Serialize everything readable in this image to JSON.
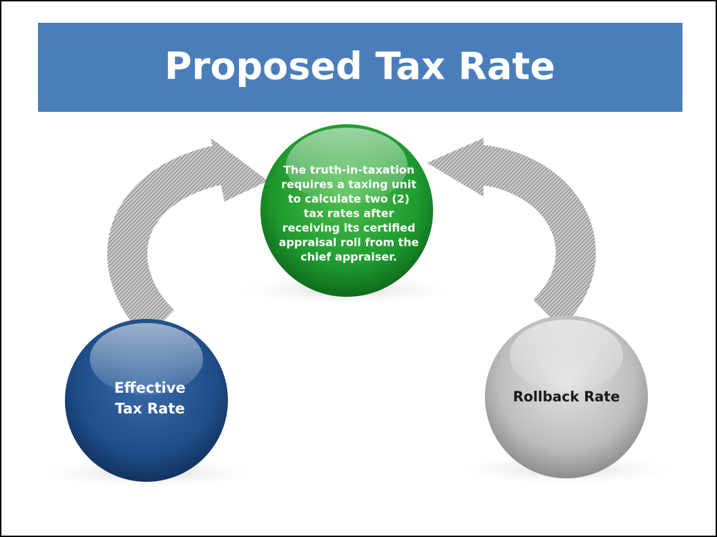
{
  "title": "Proposed Tax Rate",
  "nodes": [
    {
      "lines": [
        "The truth-in-taxation",
        "requires a taxing unit",
        "to calculate two (2)",
        "tax rates after",
        "receiving its certified",
        "appraisal roll from the",
        "chief appraiser."
      ]
    },
    {
      "lines": [
        "Effective",
        "Tax Rate"
      ]
    },
    {
      "lines": [
        "Rollback Rate"
      ]
    }
  ]
}
